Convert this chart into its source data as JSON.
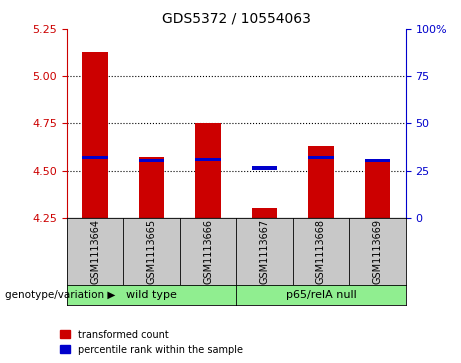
{
  "title": "GDS5372 / 10554063",
  "samples": [
    "GSM1113664",
    "GSM1113665",
    "GSM1113666",
    "GSM1113667",
    "GSM1113668",
    "GSM1113669"
  ],
  "red_values": [
    5.13,
    4.57,
    4.75,
    4.3,
    4.63,
    4.55
  ],
  "blue_values": [
    4.57,
    4.555,
    4.56,
    4.513,
    4.57,
    4.555
  ],
  "ylim_left": [
    4.25,
    5.25
  ],
  "ylim_right": [
    0,
    100
  ],
  "yticks_left": [
    4.25,
    4.5,
    4.75,
    5.0,
    5.25
  ],
  "yticks_right": [
    0,
    25,
    50,
    75,
    100
  ],
  "hlines": [
    4.5,
    4.75,
    5.0
  ],
  "group1_label": "wild type",
  "group2_label": "p65/relA null",
  "group1_color": "#90EE90",
  "group2_color": "#90EE90",
  "bar_color_red": "#CC0000",
  "bar_color_blue": "#0000CC",
  "legend_red": "transformed count",
  "legend_blue": "percentile rank within the sample",
  "bar_width": 0.45,
  "sample_bg": "#C8C8C8",
  "plot_bg": "#FFFFFF",
  "genotype_label": "genotype/variation"
}
